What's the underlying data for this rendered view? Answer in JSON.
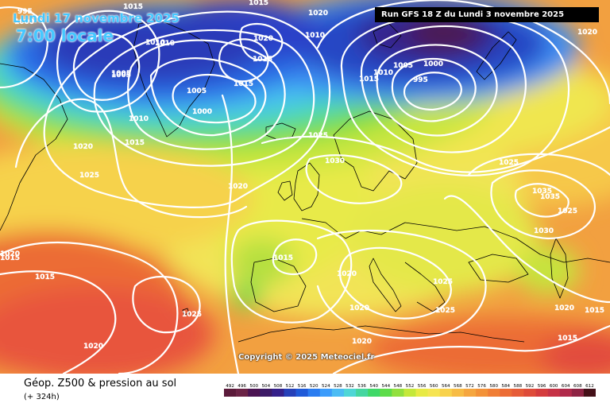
{
  "map": {
    "date_text": "Lundi 17 novembre 2025",
    "time_text": "7:00 locale",
    "run_label": "Run GFS 18 Z du Lundi 3 novembre 2025",
    "copyright": "Copyright © 2025 Meteociel.fr",
    "isobar_labels": [
      "995",
      "1000",
      "1005",
      "1010",
      "1010",
      "1015",
      "1015",
      "1020",
      "1020",
      "1025",
      "1025",
      "1030",
      "1035",
      "1035",
      "1015",
      "1005",
      "1000",
      "995",
      "1005",
      "1000",
      "1010",
      "1020",
      "1015",
      "1010",
      "1005",
      "1015",
      "1015",
      "1020",
      "1010",
      "1015",
      "1020",
      "1025",
      "1025",
      "1020",
      "1015",
      "1020",
      "1025",
      "1020",
      "1030",
      "1025",
      "1025",
      "1020",
      "1020",
      "1015",
      "1015",
      "1020",
      "1015"
    ],
    "colors": {
      "z500_low": "#2d1b8c",
      "z500_mid": "#3f9cff",
      "z500_green": "#37d45a",
      "z500_yellow": "#f2e850",
      "z500_orange": "#f38a3a",
      "z500_high": "#e8553e",
      "isobar": "#ffffff",
      "coastline": "#000000"
    }
  },
  "footer": {
    "title": "Géop. Z500 & pression au sol",
    "subtitle": "(+ 324h)",
    "scale_labels": [
      "492",
      "496",
      "500",
      "504",
      "508",
      "512",
      "516",
      "520",
      "524",
      "528",
      "532",
      "536",
      "540",
      "544",
      "548",
      "552",
      "556",
      "560",
      "564",
      "568",
      "572",
      "576",
      "580",
      "584",
      "588",
      "592",
      "596",
      "600",
      "604",
      "608",
      "612"
    ],
    "scale_colors": [
      "#5b1a3a",
      "#6b2346",
      "#4b1452",
      "#3c1a66",
      "#35208a",
      "#2640b8",
      "#1f5ad8",
      "#2a7cf0",
      "#3c9cfb",
      "#4cbcf4",
      "#4fd6d6",
      "#45d6a0",
      "#3fd868",
      "#5ddc4a",
      "#92e03e",
      "#c4e83a",
      "#e8ea44",
      "#f6e452",
      "#f8d24c",
      "#f7bc45",
      "#f5a63f",
      "#f39238",
      "#f07e36",
      "#ec6c36",
      "#e65c38",
      "#de4c3a",
      "#d43c3e",
      "#c63246",
      "#b02a4a",
      "#8e2444",
      "#441018"
    ]
  }
}
